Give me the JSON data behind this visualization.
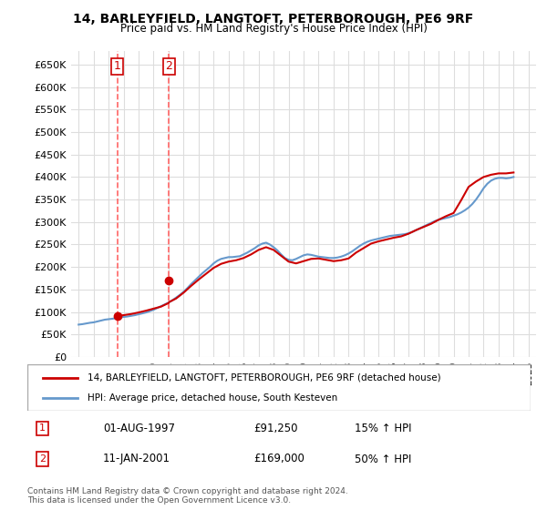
{
  "title1": "14, BARLEYFIELD, LANGTOFT, PETERBOROUGH, PE6 9RF",
  "title2": "Price paid vs. HM Land Registry's House Price Index (HPI)",
  "legend_line1": "14, BARLEYFIELD, LANGTOFT, PETERBOROUGH, PE6 9RF (detached house)",
  "legend_line2": "HPI: Average price, detached house, South Kesteven",
  "transaction1_label": "1",
  "transaction1_date": "01-AUG-1997",
  "transaction1_price": "£91,250",
  "transaction1_hpi": "15% ↑ HPI",
  "transaction2_label": "2",
  "transaction2_date": "11-JAN-2001",
  "transaction2_price": "£169,000",
  "transaction2_hpi": "50% ↑ HPI",
  "footer": "Contains HM Land Registry data © Crown copyright and database right 2024.\nThis data is licensed under the Open Government Licence v3.0.",
  "price_color": "#cc0000",
  "hpi_color": "#6699cc",
  "vline_color": "#ff6666",
  "background_color": "#ffffff",
  "grid_color": "#dddddd",
  "ylim": [
    0,
    680000
  ],
  "yticks": [
    0,
    50000,
    100000,
    150000,
    200000,
    250000,
    300000,
    350000,
    400000,
    450000,
    500000,
    550000,
    600000,
    650000
  ],
  "xlim_start": 1994.5,
  "xlim_end": 2025.5,
  "transaction1_x": 1997.58,
  "transaction2_x": 2001.03,
  "hpi_years": [
    1995,
    1995.25,
    1995.5,
    1995.75,
    1996,
    1996.25,
    1996.5,
    1996.75,
    1997,
    1997.25,
    1997.5,
    1997.75,
    1998,
    1998.25,
    1998.5,
    1998.75,
    1999,
    1999.25,
    1999.5,
    1999.75,
    2000,
    2000.25,
    2000.5,
    2000.75,
    2001,
    2001.25,
    2001.5,
    2001.75,
    2002,
    2002.25,
    2002.5,
    2002.75,
    2003,
    2003.25,
    2003.5,
    2003.75,
    2004,
    2004.25,
    2004.5,
    2004.75,
    2005,
    2005.25,
    2005.5,
    2005.75,
    2006,
    2006.25,
    2006.5,
    2006.75,
    2007,
    2007.25,
    2007.5,
    2007.75,
    2008,
    2008.25,
    2008.5,
    2008.75,
    2009,
    2009.25,
    2009.5,
    2009.75,
    2010,
    2010.25,
    2010.5,
    2010.75,
    2011,
    2011.25,
    2011.5,
    2011.75,
    2012,
    2012.25,
    2012.5,
    2012.75,
    2013,
    2013.25,
    2013.5,
    2013.75,
    2014,
    2014.25,
    2014.5,
    2014.75,
    2015,
    2015.25,
    2015.5,
    2015.75,
    2016,
    2016.25,
    2016.5,
    2016.75,
    2017,
    2017.25,
    2017.5,
    2017.75,
    2018,
    2018.25,
    2018.5,
    2018.75,
    2019,
    2019.25,
    2019.5,
    2019.75,
    2020,
    2020.25,
    2020.5,
    2020.75,
    2021,
    2021.25,
    2021.5,
    2021.75,
    2022,
    2022.25,
    2022.5,
    2022.75,
    2023,
    2023.25,
    2023.5,
    2023.75,
    2024
  ],
  "hpi_values": [
    72000,
    73000,
    74500,
    76000,
    77000,
    79000,
    81000,
    83000,
    84000,
    85000,
    86500,
    88000,
    89000,
    90000,
    91500,
    93000,
    95000,
    97000,
    99000,
    102000,
    105000,
    109000,
    113000,
    117000,
    121000,
    126000,
    132000,
    138000,
    145000,
    153000,
    162000,
    170000,
    178000,
    186000,
    193000,
    200000,
    208000,
    214000,
    218000,
    220000,
    222000,
    222000,
    223000,
    224000,
    228000,
    232000,
    237000,
    242000,
    248000,
    252000,
    254000,
    250000,
    244000,
    237000,
    228000,
    220000,
    216000,
    215000,
    218000,
    222000,
    226000,
    228000,
    227000,
    225000,
    223000,
    222000,
    221000,
    220000,
    220000,
    221000,
    223000,
    226000,
    230000,
    235000,
    241000,
    247000,
    252000,
    256000,
    259000,
    261000,
    263000,
    265000,
    267000,
    269000,
    270000,
    271000,
    272000,
    273000,
    275000,
    278000,
    282000,
    286000,
    290000,
    294000,
    298000,
    302000,
    305000,
    307000,
    309000,
    311000,
    314000,
    317000,
    321000,
    326000,
    332000,
    340000,
    350000,
    362000,
    375000,
    385000,
    392000,
    396000,
    398000,
    398000,
    397000,
    398000,
    400000
  ],
  "price_years": [
    1997.58,
    2001.03
  ],
  "price_values": [
    91250,
    169000
  ],
  "price_indexed_years": [
    1997.58,
    1998,
    1998.5,
    1999,
    1999.5,
    2000,
    2000.5,
    2001,
    2001.03,
    2001.5,
    2002,
    2002.5,
    2003,
    2003.5,
    2004,
    2004.5,
    2005,
    2005.5,
    2006,
    2006.5,
    2007,
    2007.5,
    2008,
    2008.5,
    2009,
    2009.5,
    2010,
    2010.5,
    2011,
    2011.5,
    2012,
    2012.5,
    2013,
    2013.5,
    2014,
    2014.5,
    2015,
    2015.5,
    2016,
    2016.5,
    2017,
    2017.5,
    2018,
    2018.5,
    2019,
    2019.5,
    2020,
    2020.5,
    2021,
    2021.5,
    2022,
    2022.5,
    2023,
    2023.5,
    2024
  ],
  "price_indexed_values": [
    91250,
    93000,
    95500,
    99000,
    103000,
    107500,
    112000,
    120000,
    122000,
    130000,
    143000,
    158000,
    172000,
    185000,
    198000,
    207000,
    212000,
    215000,
    220000,
    228000,
    238000,
    244000,
    238000,
    225000,
    212000,
    208000,
    213000,
    218000,
    219000,
    216000,
    213000,
    215000,
    219000,
    232000,
    242000,
    252000,
    257000,
    261000,
    265000,
    268000,
    274000,
    282000,
    289000,
    296000,
    305000,
    313000,
    320000,
    348000,
    378000,
    390000,
    400000,
    405000,
    408000,
    408000,
    410000
  ]
}
